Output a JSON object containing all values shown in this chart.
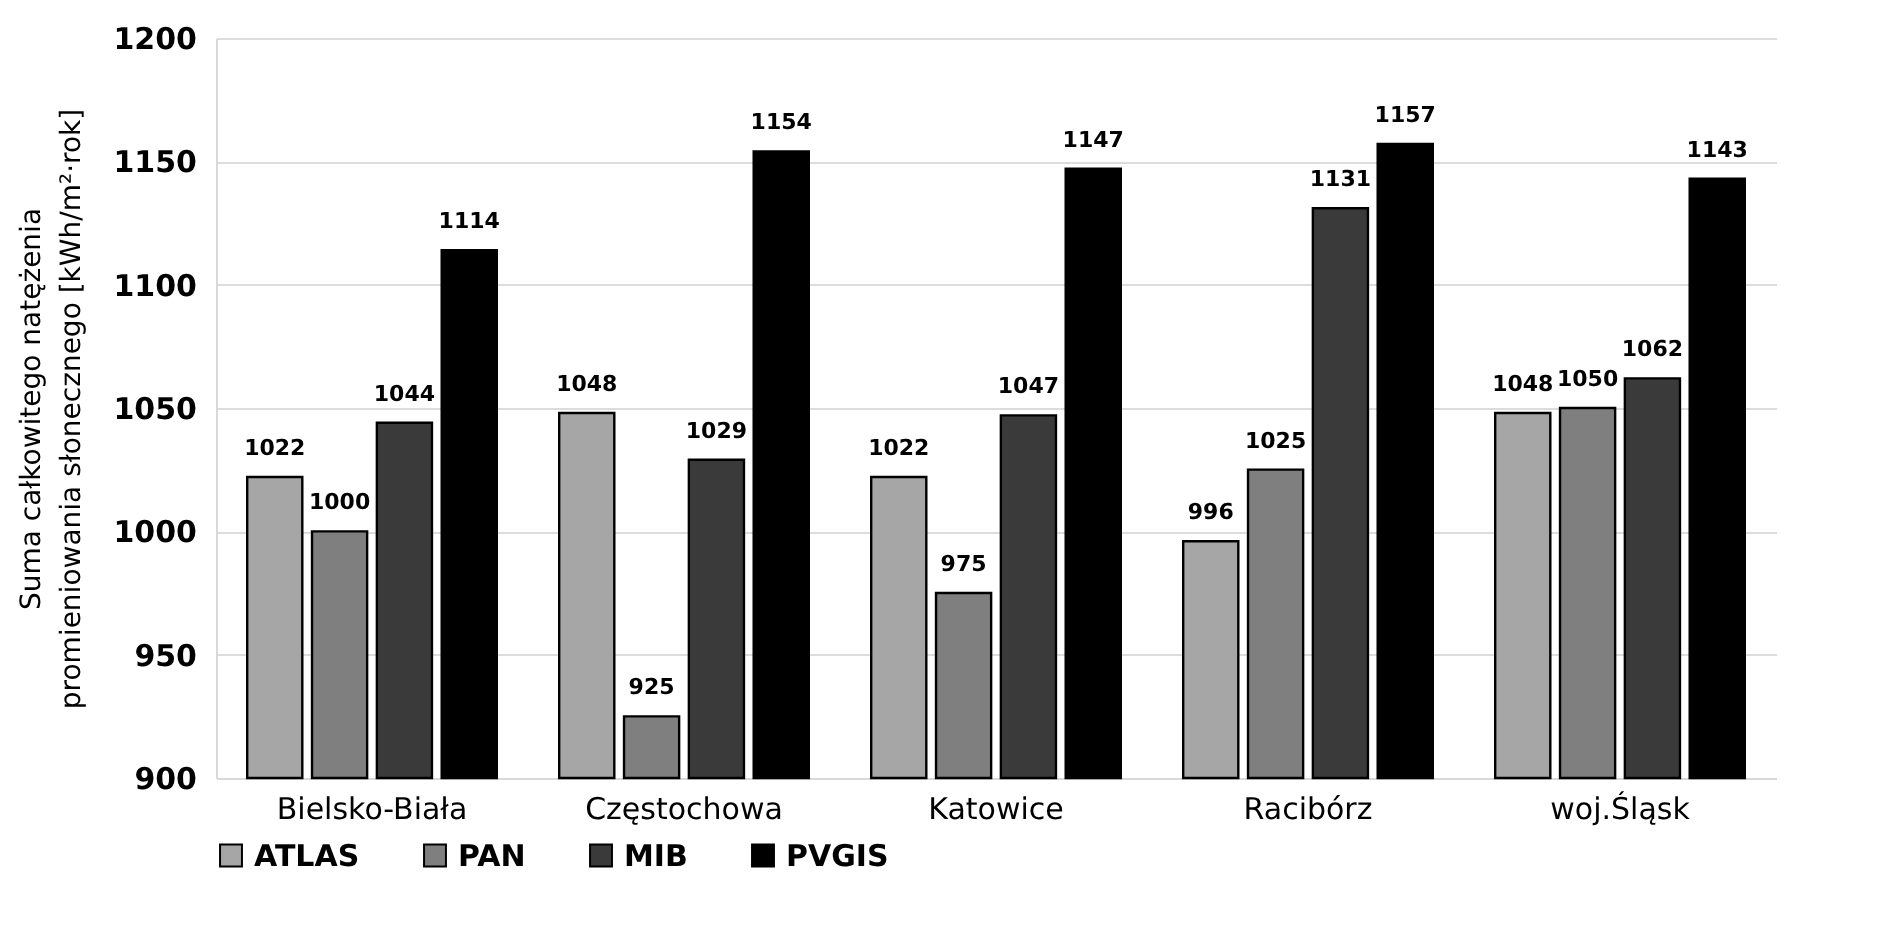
{
  "chart_data": {
    "type": "bar",
    "ylabel": "Suma całkowitego natężenia\npromieniowania słonecznego [kWh/m²·rok]",
    "categories": [
      "Bielsko-Biała",
      "Częstochowa",
      "Katowice",
      "Racibórz",
      "woj.Śląsk"
    ],
    "series": [
      {
        "name": "ATLAS",
        "color": "#a6a6a6",
        "values": [
          1022,
          1048,
          1022,
          996,
          1048
        ]
      },
      {
        "name": "PAN",
        "color": "#7f7f7f",
        "values": [
          1000,
          925,
          975,
          1025,
          1050
        ]
      },
      {
        "name": "MIB",
        "color": "#3a3a3a",
        "values": [
          1044,
          1029,
          1047,
          1131,
          1062
        ]
      },
      {
        "name": "PVGIS",
        "color": "#000000",
        "values": [
          1114,
          1154,
          1147,
          1157,
          1143
        ]
      }
    ],
    "ylim": [
      900,
      1200
    ],
    "yticks": [
      900,
      950,
      1000,
      1050,
      1100,
      1150,
      1200
    ],
    "grid": "y",
    "legend": "bottom",
    "data_labels": true
  }
}
